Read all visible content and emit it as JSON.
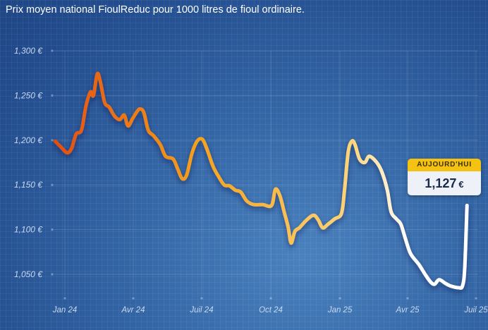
{
  "title": "Prix moyen national FioulReduc pour 1000 litres de fioul ordinaire.",
  "badge": {
    "label": "AUJOURD'HUI",
    "value": "1,127",
    "unit": "€"
  },
  "chart_data": {
    "type": "line",
    "title": "Prix moyen national FioulReduc pour 1000 litres de fioul ordinaire.",
    "xlabel": "",
    "ylabel": "",
    "ylim": [
      1025,
      1300
    ],
    "xlim": [
      "2023-12-15",
      "2025-07-01"
    ],
    "grid": true,
    "colors": {
      "start": "#e24e10",
      "mid": "#f5a21c",
      "late": "#fdd57a",
      "end": "#ffffff"
    },
    "y_ticks": [
      {
        "value": 1300,
        "label": "1,300 €"
      },
      {
        "value": 1250,
        "label": "1,250 €"
      },
      {
        "value": 1200,
        "label": "1,200 €"
      },
      {
        "value": 1150,
        "label": "1,150 €"
      },
      {
        "value": 1100,
        "label": "1,100 €"
      },
      {
        "value": 1050,
        "label": "1,050 €"
      }
    ],
    "x_ticks": [
      {
        "date": "2024-01-01",
        "label": "Jan 24"
      },
      {
        "date": "2024-04-01",
        "label": "Avr 24"
      },
      {
        "date": "2024-07-01",
        "label": "Juil 24"
      },
      {
        "date": "2024-10-01",
        "label": "Oct 24"
      },
      {
        "date": "2025-01-01",
        "label": "Jan 25"
      },
      {
        "date": "2025-04-01",
        "label": "Avr 25"
      },
      {
        "date": "2025-07-01",
        "label": "Juil 25"
      }
    ],
    "series": [
      {
        "points": [
          [
            "2023-12-19",
            1199
          ],
          [
            "2023-12-26",
            1193
          ],
          [
            "2024-01-04",
            1186
          ],
          [
            "2024-01-10",
            1191
          ],
          [
            "2024-01-16",
            1207
          ],
          [
            "2024-01-23",
            1211
          ],
          [
            "2024-01-29",
            1238
          ],
          [
            "2024-02-04",
            1254
          ],
          [
            "2024-02-08",
            1250
          ],
          [
            "2024-02-13",
            1274
          ],
          [
            "2024-02-17",
            1266
          ],
          [
            "2024-02-23",
            1242
          ],
          [
            "2024-02-29",
            1237
          ],
          [
            "2024-03-07",
            1227
          ],
          [
            "2024-03-14",
            1223
          ],
          [
            "2024-03-20",
            1228
          ],
          [
            "2024-03-25",
            1216
          ],
          [
            "2024-03-31",
            1224
          ],
          [
            "2024-04-06",
            1232
          ],
          [
            "2024-04-10",
            1235
          ],
          [
            "2024-04-15",
            1231
          ],
          [
            "2024-04-21",
            1211
          ],
          [
            "2024-04-28",
            1205
          ],
          [
            "2024-05-07",
            1195
          ],
          [
            "2024-05-14",
            1182
          ],
          [
            "2024-05-24",
            1179
          ],
          [
            "2024-05-30",
            1168
          ],
          [
            "2024-06-05",
            1157
          ],
          [
            "2024-06-11",
            1161
          ],
          [
            "2024-06-18",
            1185
          ],
          [
            "2024-06-25",
            1199
          ],
          [
            "2024-07-02",
            1201
          ],
          [
            "2024-07-08",
            1190
          ],
          [
            "2024-07-16",
            1171
          ],
          [
            "2024-07-23",
            1160
          ],
          [
            "2024-07-31",
            1150
          ],
          [
            "2024-08-07",
            1149
          ],
          [
            "2024-08-15",
            1144
          ],
          [
            "2024-08-22",
            1142
          ],
          [
            "2024-08-30",
            1132
          ],
          [
            "2024-09-08",
            1128
          ],
          [
            "2024-09-20",
            1128
          ],
          [
            "2024-10-02",
            1127
          ],
          [
            "2024-10-07",
            1145
          ],
          [
            "2024-10-13",
            1138
          ],
          [
            "2024-10-19",
            1119
          ],
          [
            "2024-10-24",
            1103
          ],
          [
            "2024-10-28",
            1085
          ],
          [
            "2024-11-02",
            1098
          ],
          [
            "2024-11-08",
            1102
          ],
          [
            "2024-11-18",
            1111
          ],
          [
            "2024-11-27",
            1116
          ],
          [
            "2024-12-03",
            1111
          ],
          [
            "2024-12-09",
            1102
          ],
          [
            "2024-12-16",
            1106
          ],
          [
            "2024-12-25",
            1112
          ],
          [
            "2025-01-03",
            1118
          ],
          [
            "2025-01-07",
            1144
          ],
          [
            "2025-01-12",
            1187
          ],
          [
            "2025-01-17",
            1199
          ],
          [
            "2025-01-21",
            1195
          ],
          [
            "2025-01-27",
            1179
          ],
          [
            "2025-02-03",
            1175
          ],
          [
            "2025-02-09",
            1182
          ],
          [
            "2025-02-19",
            1175
          ],
          [
            "2025-02-26",
            1164
          ],
          [
            "2025-03-05",
            1144
          ],
          [
            "2025-03-10",
            1120
          ],
          [
            "2025-03-17",
            1112
          ],
          [
            "2025-03-23",
            1106
          ],
          [
            "2025-03-29",
            1090
          ],
          [
            "2025-04-05",
            1073
          ],
          [
            "2025-04-16",
            1061
          ],
          [
            "2025-04-25",
            1049
          ],
          [
            "2025-05-02",
            1041
          ],
          [
            "2025-05-07",
            1039
          ],
          [
            "2025-05-13",
            1044
          ],
          [
            "2025-05-21",
            1040
          ],
          [
            "2025-05-28",
            1037
          ],
          [
            "2025-06-08",
            1035
          ],
          [
            "2025-06-13",
            1037
          ],
          [
            "2025-06-16",
            1057
          ],
          [
            "2025-06-19",
            1127
          ]
        ]
      }
    ]
  }
}
